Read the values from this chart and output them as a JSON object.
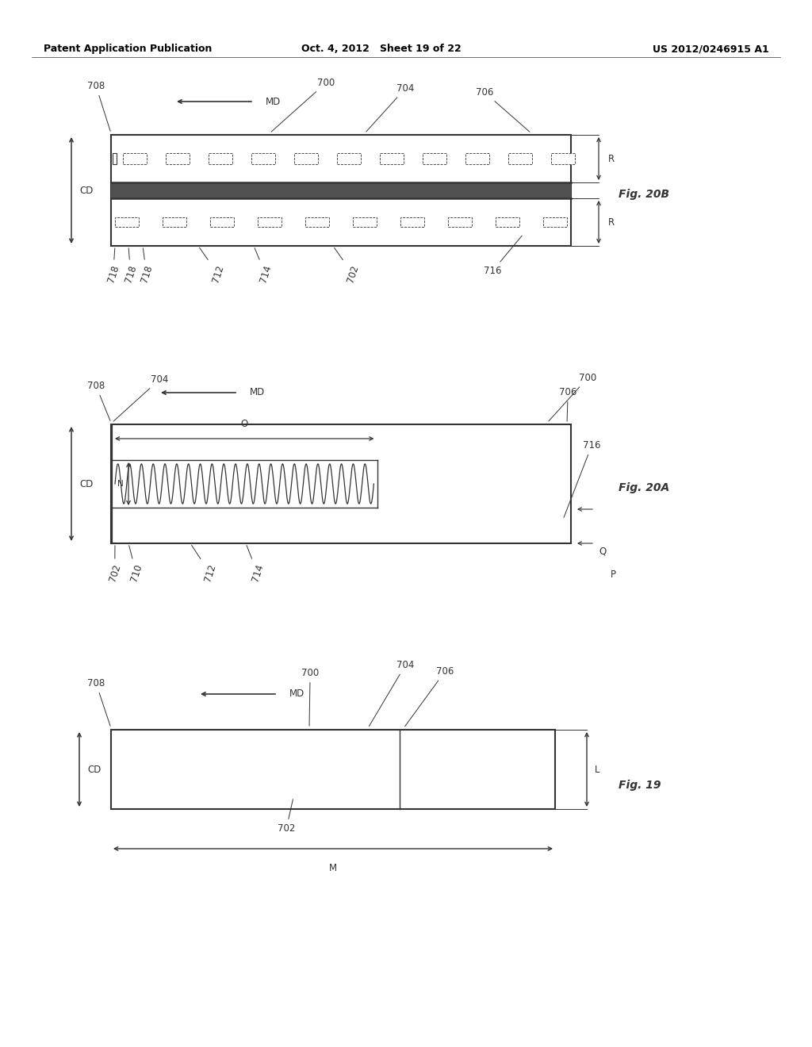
{
  "header_left": "Patent Application Publication",
  "header_mid": "Oct. 4, 2012   Sheet 19 of 22",
  "header_right": "US 2012/0246915 A1",
  "bg_color": "#ffffff",
  "line_color": "#333333",
  "fig_label_color": "#222222"
}
